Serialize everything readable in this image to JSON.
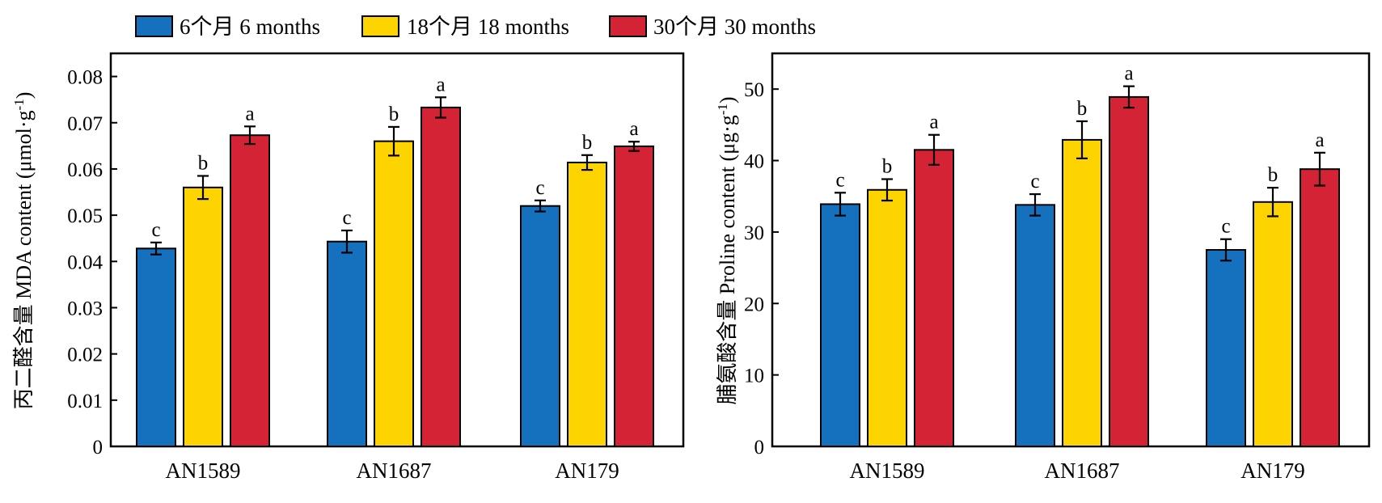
{
  "legend": [
    {
      "label": "6个月 6 months",
      "color": "#1570BE"
    },
    {
      "label": "18个月 18 months",
      "color": "#FDD300"
    },
    {
      "label": "30个月 30 months",
      "color": "#D42335"
    }
  ],
  "chart_data": [
    {
      "type": "bar",
      "categories": [
        "AN1589",
        "AN1687",
        "AN179"
      ],
      "ylabel": "丙二醛含量 MDA content (μmol·g⁻¹)",
      "ylabel_parts": {
        "main": "丙二醛含量 MDA content (μmol·g",
        "sup": "-1",
        "close": ")"
      },
      "ylim": [
        0,
        0.085
      ],
      "yticks": [
        0,
        0.01,
        0.02,
        0.03,
        0.04,
        0.05,
        0.06,
        0.07,
        0.08
      ],
      "ytick_labels": [
        "0",
        "0.01",
        "0.02",
        "0.03",
        "0.04",
        "0.05",
        "0.06",
        "0.07",
        "0.08"
      ],
      "series": [
        {
          "name": "6个月 6 months",
          "values": [
            0.0428,
            0.0443,
            0.052
          ],
          "errors": [
            0.0013,
            0.0024,
            0.0012
          ],
          "letters": [
            "c",
            "c",
            "c"
          ]
        },
        {
          "name": "18个月 18 months",
          "values": [
            0.056,
            0.066,
            0.0614
          ],
          "errors": [
            0.0025,
            0.0031,
            0.0016
          ],
          "letters": [
            "b",
            "b",
            "b"
          ]
        },
        {
          "name": "30个月 30 months",
          "values": [
            0.0673,
            0.0733,
            0.0649
          ],
          "errors": [
            0.0019,
            0.0022,
            0.001
          ],
          "letters": [
            "a",
            "a",
            "a"
          ]
        }
      ]
    },
    {
      "type": "bar",
      "categories": [
        "AN1589",
        "AN1687",
        "AN179"
      ],
      "ylabel": "脯氨酸含量 Proline content (μg·g⁻¹)",
      "ylabel_parts": {
        "main": "脯氨酸含量 Proline content (μg·g",
        "sup": "-1",
        "close": ")"
      },
      "ylim": [
        0,
        55
      ],
      "yticks": [
        0,
        10,
        20,
        30,
        40,
        50
      ],
      "ytick_labels": [
        "0",
        "10",
        "20",
        "30",
        "40",
        "50"
      ],
      "series": [
        {
          "name": "6个月 6 months",
          "values": [
            33.9,
            33.8,
            27.5
          ],
          "errors": [
            1.6,
            1.5,
            1.5
          ],
          "letters": [
            "c",
            "c",
            "c"
          ]
        },
        {
          "name": "18个月 18 months",
          "values": [
            35.9,
            42.9,
            34.2
          ],
          "errors": [
            1.5,
            2.6,
            2.0
          ],
          "letters": [
            "b",
            "b",
            "b"
          ]
        },
        {
          "name": "30个月 30 months",
          "values": [
            41.5,
            48.9,
            38.8
          ],
          "errors": [
            2.1,
            1.5,
            2.3
          ],
          "letters": [
            "a",
            "a",
            "a"
          ]
        }
      ]
    }
  ]
}
